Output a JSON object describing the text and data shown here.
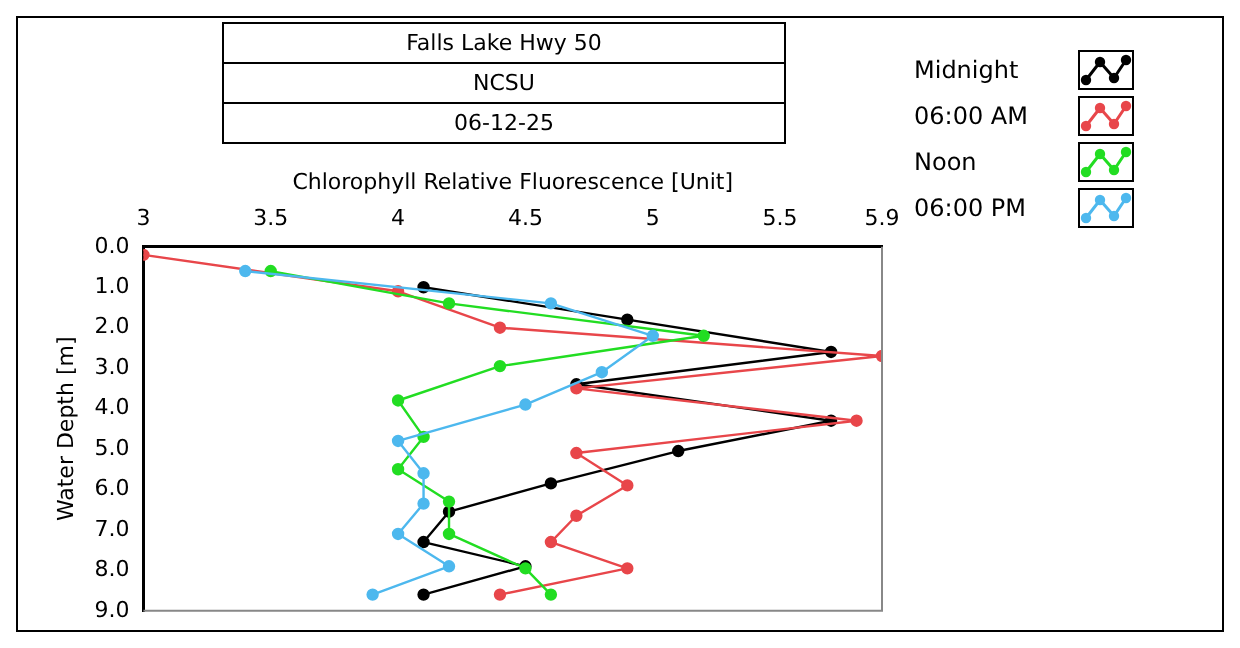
{
  "chart_data": {
    "type": "line",
    "title": "Falls Lake Hwy 50",
    "subtitle": "NCSU",
    "annotations": [
      "06-12-25"
    ],
    "xlabel": "Chlorophyll Relative Fluorescence [Unit]",
    "ylabel": "Water Depth [m]",
    "xlim": [
      3,
      5.9
    ],
    "xticks": [
      3,
      3.5,
      4,
      4.5,
      5,
      5.5,
      5.9
    ],
    "ylim": [
      9,
      0
    ],
    "yticks": [
      {
        "value": 0,
        "label": "0.0"
      },
      {
        "value": 1,
        "label": "1.0"
      },
      {
        "value": 2,
        "label": "2.0"
      },
      {
        "value": 3,
        "label": "3.0"
      },
      {
        "value": 4,
        "label": "4.0"
      },
      {
        "value": 5,
        "label": "5.0"
      },
      {
        "value": 6,
        "label": "6.0"
      },
      {
        "value": 7,
        "label": "7.0"
      },
      {
        "value": 8,
        "label": "8.0"
      },
      {
        "value": 9,
        "label": "9.0"
      }
    ],
    "grid": false,
    "legend": "top right",
    "marker": "circle",
    "line_style": "solid",
    "series": [
      {
        "name": "Midnight",
        "color": "#000000",
        "x": [
          4.1,
          4.9,
          5.7,
          4.7,
          5.7,
          5.1,
          4.6,
          4.2,
          4.1,
          4.5,
          4.1
        ],
        "values": [
          1.0,
          1.8,
          2.6,
          3.4,
          4.3,
          5.05,
          5.85,
          6.55,
          7.3,
          7.9,
          8.6
        ]
      },
      {
        "name": "06:00 AM",
        "color": "#e8464a",
        "x": [
          3.0,
          4.0,
          4.4,
          5.9,
          4.7,
          5.8,
          4.7,
          4.9,
          4.7,
          4.6,
          4.9,
          4.4
        ],
        "values": [
          0.2,
          1.1,
          2.0,
          2.7,
          3.5,
          4.3,
          5.1,
          5.9,
          6.65,
          7.3,
          7.95,
          8.6
        ]
      },
      {
        "name": "Noon",
        "color": "#22dd22",
        "x": [
          3.5,
          4.2,
          5.2,
          4.4,
          4.0,
          4.1,
          4.0,
          4.2,
          4.2,
          4.5,
          4.6
        ],
        "values": [
          0.6,
          1.4,
          2.2,
          2.95,
          3.8,
          4.7,
          5.5,
          6.3,
          7.1,
          7.95,
          8.6
        ]
      },
      {
        "name": "06:00 PM",
        "color": "#4db8ee",
        "x": [
          3.4,
          4.6,
          5.0,
          4.8,
          4.5,
          4.0,
          4.1,
          4.1,
          4.0,
          4.2,
          3.9
        ],
        "values": [
          0.6,
          1.4,
          2.2,
          3.1,
          3.9,
          4.8,
          5.6,
          6.35,
          7.1,
          7.9,
          8.6
        ]
      }
    ]
  }
}
